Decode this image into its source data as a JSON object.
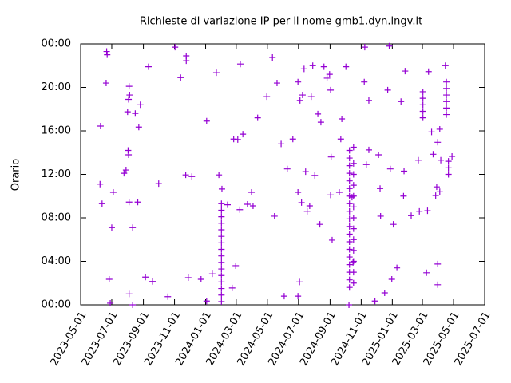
{
  "chart_data": {
    "type": "scatter",
    "title": "Richieste di variazione IP per il nome gmb1.dyn.ingv.it",
    "ylabel": "Orario",
    "color": "#9400d3",
    "xlim": [
      "2023-05-01",
      "2025-07-01"
    ],
    "xticks": [
      "2023-05-01",
      "2023-07-01",
      "2023-09-01",
      "2023-11-01",
      "2024-01-01",
      "2024-03-01",
      "2024-05-01",
      "2024-07-01",
      "2024-09-01",
      "2024-11-01",
      "2025-01-01",
      "2025-03-01",
      "2025-05-01",
      "2025-07-01"
    ],
    "ylim": [
      0,
      24
    ],
    "yticks": [
      {
        "value": 0,
        "label": "00:00"
      },
      {
        "value": 4,
        "label": "04:00"
      },
      {
        "value": 8,
        "label": "08:00"
      },
      {
        "value": 12,
        "label": "12:00"
      },
      {
        "value": 16,
        "label": "16:00"
      },
      {
        "value": 20,
        "label": "20:00"
      },
      {
        "value": 24,
        "label": "00:00"
      }
    ],
    "x": [
      "2023-06-09",
      "2023-06-12",
      "2023-06-08",
      "2023-06-20",
      "2023-06-21",
      "2023-06-22",
      "2023-07-01",
      "2023-07-04",
      "2023-06-26",
      "2023-06-28",
      "2023-08-01",
      "2023-08-02",
      "2023-08-03",
      "2023-07-29",
      "2023-07-25",
      "2023-08-04",
      "2023-08-05",
      "2023-08-03",
      "2023-08-16",
      "2023-08-26",
      "2023-08-23",
      "2023-08-21",
      "2023-08-11",
      "2023-08-04",
      "2023-08-04",
      "2023-08-11",
      "2023-09-11",
      "2023-09-05",
      "2023-09-19",
      "2023-10-01",
      "2023-10-19",
      "2023-11-02",
      "2023-11-13",
      "2023-11-24",
      "2023-11-24",
      "2023-11-23",
      "2023-12-05",
      "2023-11-28",
      "2023-12-23",
      "2024-01-03",
      "2024-01-14",
      "2024-01-03",
      "2024-01-22",
      "2024-01-27",
      "2024-02-02",
      "2024-02-01",
      "2024-02-01",
      "2024-02-01",
      "2024-02-01",
      "2024-02-01",
      "2024-02-01",
      "2024-02-01",
      "2024-02-01",
      "2024-02-01",
      "2024-02-01",
      "2024-02-01",
      "2024-02-01",
      "2024-02-01",
      "2024-02-01",
      "2024-02-01",
      "2024-02-01",
      "2024-02-13",
      "2024-02-22",
      "2024-02-29",
      "2024-02-25",
      "2024-03-04",
      "2024-03-09",
      "2024-03-14",
      "2024-03-08",
      "2024-03-23",
      "2024-03-31",
      "2024-04-03",
      "2024-04-12",
      "2024-04-30",
      "2024-05-11",
      "2024-05-15",
      "2024-05-20",
      "2024-05-28",
      "2024-06-03",
      "2024-06-09",
      "2024-06-20",
      "2024-06-30",
      "2024-06-30",
      "2024-07-03",
      "2024-06-30",
      "2024-07-07",
      "2024-07-04",
      "2024-07-09",
      "2024-07-12",
      "2024-07-15",
      "2024-07-18",
      "2024-07-23",
      "2024-07-26",
      "2024-07-29",
      "2024-08-02",
      "2024-08-08",
      "2024-08-14",
      "2024-08-12",
      "2024-08-20",
      "2024-08-26",
      "2024-08-31",
      "2024-09-02",
      "2024-09-02",
      "2024-09-03",
      "2024-09-05",
      "2024-09-19",
      "2024-09-24",
      "2024-09-22",
      "2024-10-02",
      "2024-10-08",
      "2024-10-09",
      "2024-10-09",
      "2024-10-09",
      "2024-10-09",
      "2024-10-09",
      "2024-10-09",
      "2024-10-09",
      "2024-10-09",
      "2024-10-09",
      "2024-10-09",
      "2024-10-09",
      "2024-10-09",
      "2024-10-09",
      "2024-10-09",
      "2024-10-09",
      "2024-10-09",
      "2024-10-09",
      "2024-10-09",
      "2024-10-09",
      "2024-10-17",
      "2024-10-17",
      "2024-10-17",
      "2024-10-17",
      "2024-10-17",
      "2024-10-17",
      "2024-10-17",
      "2024-10-17",
      "2024-10-17",
      "2024-10-17",
      "2024-10-17",
      "2024-10-17",
      "2024-10-17",
      "2024-10-14",
      "2024-10-16",
      "2024-11-07",
      "2024-11-08",
      "2024-11-16",
      "2024-11-16",
      "2024-11-11",
      "2024-11-28",
      "2024-12-05",
      "2024-12-08",
      "2024-12-09",
      "2024-12-17",
      "2024-12-23",
      "2024-12-26",
      "2024-12-28",
      "2024-12-31",
      "2025-01-03",
      "2025-01-10",
      "2025-01-18",
      "2025-01-24",
      "2025-01-23",
      "2025-01-26",
      "2025-02-07",
      "2025-02-21",
      "2025-02-23",
      "2025-03-02",
      "2025-03-02",
      "2025-03-02",
      "2025-03-02",
      "2025-03-02",
      "2025-03-09",
      "2025-03-13",
      "2025-03-11",
      "2025-03-19",
      "2025-03-22",
      "2025-03-31",
      "2025-03-31",
      "2025-03-31",
      "2025-03-29",
      "2025-03-27",
      "2025-04-04",
      "2025-04-04",
      "2025-04-06",
      "2025-04-15",
      "2025-04-17",
      "2025-04-17",
      "2025-04-17",
      "2025-04-17",
      "2025-04-17",
      "2025-04-17",
      "2025-04-21",
      "2025-04-21",
      "2025-04-21",
      "2025-04-28"
    ],
    "values": [
      16.44,
      9.3,
      11.1,
      20.4,
      23.3,
      23.0,
      7.1,
      10.35,
      2.35,
      0.15,
      17.75,
      14.2,
      13.8,
      12.4,
      12.1,
      20.1,
      19.3,
      18.9,
      17.6,
      18.4,
      16.35,
      9.45,
      7.1,
      9.45,
      1.0,
      0.0,
      21.9,
      2.55,
      2.15,
      11.15,
      0.75,
      23.7,
      20.9,
      22.9,
      22.45,
      11.95,
      11.8,
      2.5,
      2.35,
      0.35,
      2.85,
      16.9,
      21.35,
      11.95,
      10.65,
      0.3,
      0.9,
      1.5,
      2.1,
      2.7,
      3.3,
      3.9,
      4.5,
      5.1,
      5.7,
      6.3,
      6.9,
      7.5,
      8.1,
      8.7,
      9.3,
      9.2,
      1.55,
      3.6,
      15.25,
      15.2,
      22.15,
      15.7,
      8.75,
      9.25,
      10.35,
      9.1,
      17.2,
      19.15,
      22.75,
      8.15,
      20.4,
      14.8,
      0.8,
      12.5,
      15.25,
      20.5,
      10.35,
      2.1,
      0.8,
      9.4,
      18.8,
      19.3,
      21.7,
      12.25,
      8.6,
      9.1,
      19.15,
      22.0,
      11.9,
      17.55,
      16.8,
      7.4,
      21.9,
      20.85,
      21.2,
      19.75,
      10.1,
      13.6,
      5.95,
      10.35,
      17.1,
      15.25,
      21.9,
      0.0,
      1.6,
      2.3,
      3.0,
      3.7,
      4.4,
      5.1,
      5.8,
      6.5,
      7.2,
      7.9,
      8.6,
      9.3,
      10.0,
      10.7,
      11.4,
      12.1,
      12.8,
      13.5,
      14.2,
      2.0,
      3.0,
      4.0,
      5.0,
      6.0,
      7.0,
      8.0,
      9.0,
      10.0,
      11.0,
      12.0,
      13.0,
      14.5,
      9.9,
      3.9,
      20.5,
      23.7,
      18.8,
      14.25,
      12.9,
      0.35,
      13.8,
      10.7,
      8.15,
      1.1,
      19.75,
      23.8,
      12.5,
      2.35,
      7.4,
      3.4,
      18.7,
      12.3,
      10.0,
      21.5,
      8.2,
      13.3,
      8.6,
      17.2,
      17.8,
      18.4,
      19.0,
      19.6,
      2.95,
      21.45,
      8.65,
      15.9,
      13.85,
      14.95,
      3.75,
      1.85,
      10.85,
      10.05,
      16.15,
      10.4,
      13.3,
      22.0,
      17.5,
      18.1,
      18.7,
      19.3,
      19.9,
      20.5,
      12.0,
      12.6,
      13.2,
      13.65
    ]
  }
}
